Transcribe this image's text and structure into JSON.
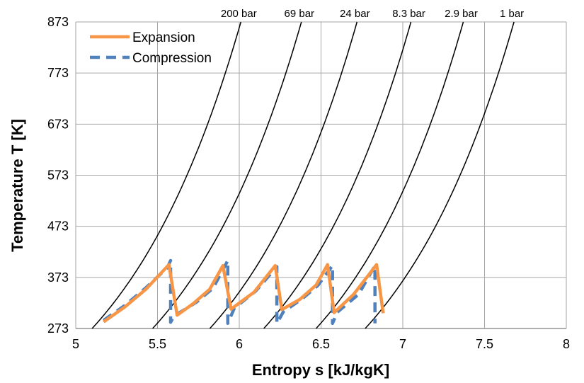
{
  "chart_data": {
    "type": "line",
    "title": "",
    "xlabel": "Entropy s [kJ/kgK]",
    "ylabel": "Temperature T [K]",
    "xlim": [
      5,
      8
    ],
    "ylim": [
      273,
      873
    ],
    "x_ticks": [
      "5",
      "5.5",
      "6",
      "6.5",
      "7",
      "7.5",
      "8"
    ],
    "y_ticks": [
      "273",
      "373",
      "473",
      "573",
      "673",
      "773",
      "873"
    ],
    "grid": true,
    "legend": {
      "position": "top-left",
      "entries": [
        "Expansion",
        "Compression"
      ]
    },
    "colors": {
      "expansion": "#F79646",
      "compression": "#4F81BD",
      "isobar": "#000000",
      "grid": "#A6A6A6"
    },
    "isobars": [
      {
        "label": "200 bar",
        "s_273": 5.1,
        "s_873": 6.01
      },
      {
        "label": "69 bar",
        "s_273": 5.47,
        "s_873": 6.38
      },
      {
        "label": "24 bar",
        "s_273": 5.82,
        "s_873": 6.72
      },
      {
        "label": "8.3 bar",
        "s_273": 6.15,
        "s_873": 7.05
      },
      {
        "label": "2.9 bar",
        "s_273": 6.47,
        "s_873": 7.37
      },
      {
        "label": "1 bar",
        "s_273": 6.77,
        "s_873": 7.68
      }
    ],
    "series": [
      {
        "name": "Expansion",
        "style": "solid",
        "points": [
          [
            5.17,
            286
          ],
          [
            5.3,
            315
          ],
          [
            5.43,
            350
          ],
          [
            5.57,
            398
          ],
          [
            5.62,
            299
          ],
          [
            5.72,
            322
          ],
          [
            5.82,
            350
          ],
          [
            5.9,
            396
          ],
          [
            5.95,
            311
          ],
          [
            6.09,
            344
          ],
          [
            6.22,
            396
          ],
          [
            6.26,
            310
          ],
          [
            6.37,
            330
          ],
          [
            6.47,
            358
          ],
          [
            6.54,
            398
          ],
          [
            6.58,
            304
          ],
          [
            6.7,
            340
          ],
          [
            6.84,
            398
          ],
          [
            6.88,
            303
          ]
        ]
      },
      {
        "name": "Compression",
        "style": "dashed",
        "points": [
          [
            5.17,
            289
          ],
          [
            5.3,
            318
          ],
          [
            5.43,
            353
          ],
          [
            5.56,
            392
          ],
          [
            5.58,
            406
          ],
          [
            5.58,
            285
          ],
          [
            5.6,
            297
          ],
          [
            5.74,
            325
          ],
          [
            5.84,
            352
          ],
          [
            5.93,
            406
          ],
          [
            5.93,
            283
          ],
          [
            5.97,
            313
          ],
          [
            6.1,
            346
          ],
          [
            6.23,
            394
          ],
          [
            6.23,
            283
          ],
          [
            6.27,
            306
          ],
          [
            6.38,
            330
          ],
          [
            6.48,
            357
          ],
          [
            6.57,
            396
          ],
          [
            6.57,
            283
          ],
          [
            6.6,
            305
          ],
          [
            6.73,
            340
          ],
          [
            6.83,
            396
          ],
          [
            6.83,
            283
          ]
        ]
      }
    ]
  }
}
